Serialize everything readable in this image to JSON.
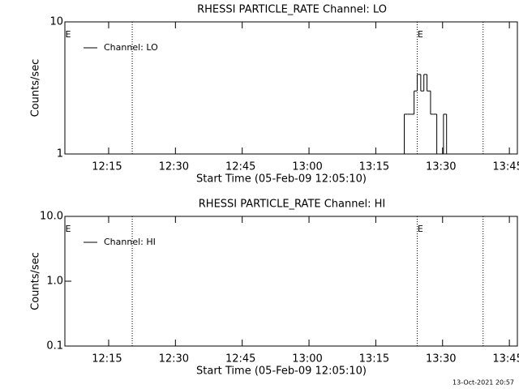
{
  "chart_data": [
    {
      "type": "line",
      "title": "RHESSI PARTICLE_RATE Channel: LO",
      "xlabel": "Start Time (05-Feb-09 12:05:10)",
      "ylabel": "Counts/sec",
      "log_y": true,
      "step": true,
      "legend": "upper left",
      "xlim": [
        5.17,
        106.8
      ],
      "xticks": [
        {
          "value": 15,
          "label": "12:15"
        },
        {
          "value": 30,
          "label": "12:30"
        },
        {
          "value": 45,
          "label": "12:45"
        },
        {
          "value": 60,
          "label": "13:00"
        },
        {
          "value": 75,
          "label": "13:15"
        },
        {
          "value": 90,
          "label": "13:30"
        },
        {
          "value": 105,
          "label": "13:45"
        }
      ],
      "ylim": [
        1,
        10
      ],
      "yticks": [
        1,
        10
      ],
      "vlines": [
        20.3,
        84.3,
        99.1
      ],
      "annotations": [
        {
          "text": "E",
          "x": 5.9
        },
        {
          "text": "E",
          "x": 85.0
        }
      ],
      "x": [
        81.4,
        82.1,
        82.9,
        83.6,
        84.3,
        85.1,
        85.8,
        86.5,
        87.3,
        88.0,
        88.7,
        89.5,
        90.2,
        90.9
      ],
      "series": [
        {
          "name": "Channel: LO",
          "color": "#000000",
          "values": [
            2,
            2,
            2,
            3,
            4,
            3,
            4,
            3,
            2,
            2,
            null,
            null,
            2,
            null
          ]
        }
      ]
    },
    {
      "type": "line",
      "title": "RHESSI PARTICLE_RATE Channel: HI",
      "xlabel": "Start Time (05-Feb-09 12:05:10)",
      "ylabel": "Counts/sec",
      "log_y": true,
      "step": true,
      "legend": "upper left",
      "xlim": [
        5.17,
        106.8
      ],
      "xticks": [
        {
          "value": 15,
          "label": "12:15"
        },
        {
          "value": 30,
          "label": "12:30"
        },
        {
          "value": 45,
          "label": "12:45"
        },
        {
          "value": 60,
          "label": "13:00"
        },
        {
          "value": 75,
          "label": "13:15"
        },
        {
          "value": 90,
          "label": "13:30"
        },
        {
          "value": 105,
          "label": "13:45"
        }
      ],
      "ylim": [
        0.1,
        10
      ],
      "yticks": [
        {
          "value": 0.1,
          "label": "0.1"
        },
        {
          "value": 1,
          "label": "1.0"
        },
        {
          "value": 10,
          "label": "10.0"
        }
      ],
      "vlines": [
        20.3,
        84.3,
        99.1
      ],
      "annotations": [
        {
          "text": "E",
          "x": 5.9
        },
        {
          "text": "E",
          "x": 85.0
        }
      ],
      "x": [],
      "series": [
        {
          "name": "Channel: HI",
          "color": "#000000",
          "values": []
        }
      ]
    }
  ],
  "footer": "13-Oct-2021 20:57"
}
